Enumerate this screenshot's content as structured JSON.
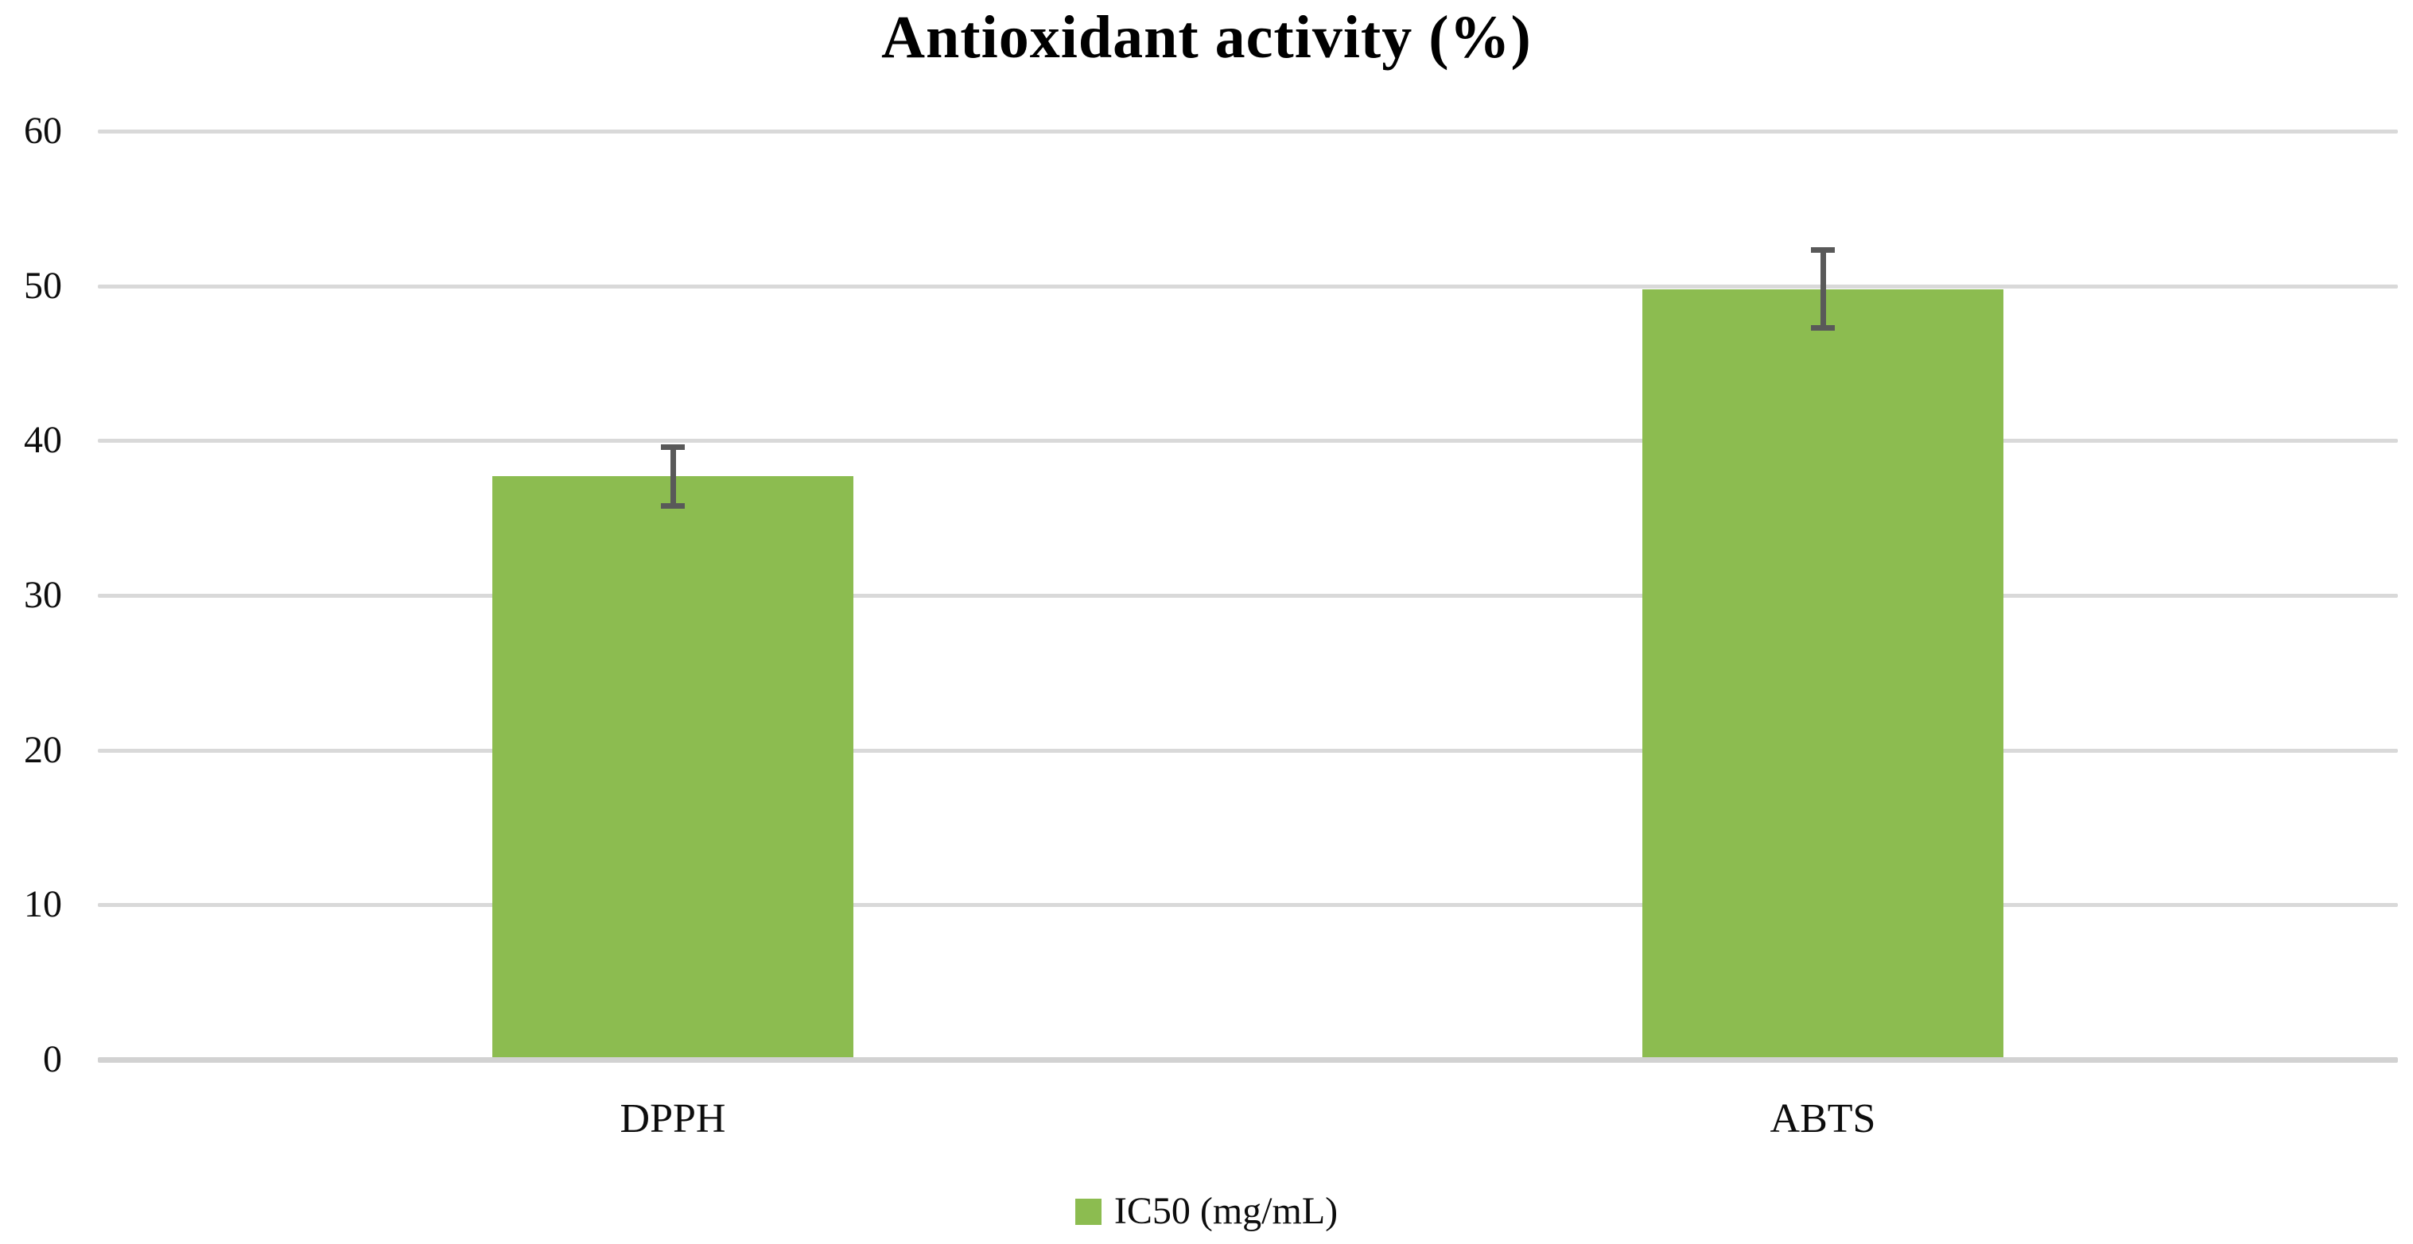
{
  "chart_data": {
    "type": "bar",
    "title": "Antioxidant activity (%)",
    "categories": [
      "DPPH",
      "ABTS"
    ],
    "series": [
      {
        "name": "IC50 (mg/mL)",
        "values": [
          37.7,
          49.8
        ],
        "errors": [
          1.9,
          2.5
        ]
      }
    ],
    "xlabel": "",
    "ylabel": "",
    "ylim": [
      0,
      60
    ],
    "yticks": [
      0,
      10,
      20,
      30,
      40,
      50,
      60
    ],
    "grid": true,
    "legend": {
      "label": "IC50 (mg/mL)",
      "position": "bottom",
      "marker": "square"
    },
    "colors": {
      "bar": "#8CBC50",
      "error_bar": "#595959",
      "gridline": "#D9D9D9",
      "axis_line": "#D2D2D2",
      "text": "#0d0d0d",
      "background": "#FFFFFF"
    }
  }
}
